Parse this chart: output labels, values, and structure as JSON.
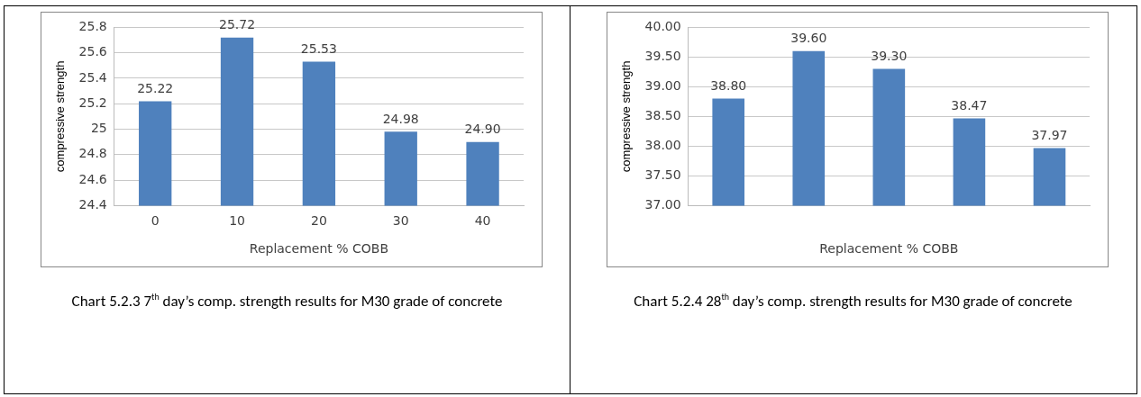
{
  "chart_data": [
    {
      "type": "bar",
      "categories": [
        "0",
        "10",
        "20",
        "30",
        "40"
      ],
      "values": [
        25.22,
        25.72,
        25.53,
        24.98,
        24.9
      ],
      "value_labels": [
        "25.22",
        "25.72",
        "25.53",
        "24.98",
        "24.90"
      ],
      "color": "#4f81bd",
      "xlabel": "Replacement % COBB",
      "ylabel": "compressive strength",
      "ylim": [
        24.4,
        25.8
      ],
      "yticks": [
        24.4,
        24.6,
        24.8,
        25,
        25.2,
        25.4,
        25.6,
        25.8
      ],
      "grid": "y",
      "annotations": [
        "Chart 5.2.3 7$^{th}$ day’s comp. strength results for M30 grade of concrete"
      ]
    },
    {
      "type": "bar",
      "categories": [
        null,
        null,
        null,
        null,
        null
      ],
      "values": [
        38.8,
        39.6,
        39.3,
        38.47,
        37.97
      ],
      "value_labels": [
        "38.80",
        "39.60",
        "39.30",
        "38.47",
        "37.97"
      ],
      "color": "#4f81bd",
      "xlabel": "Replacement % COBB",
      "ylabel": "compressive strength",
      "ylim": [
        37,
        40
      ],
      "yticks": [
        {
          "value": 37,
          "label": "37.00"
        },
        {
          "value": 37.5,
          "label": "37.50"
        },
        {
          "value": 38,
          "label": "38.00"
        },
        {
          "value": 38.5,
          "label": "38.50"
        },
        {
          "value": 39,
          "label": "39.00"
        },
        {
          "value": 39.5,
          "label": "39.50"
        },
        {
          "value": 40,
          "label": "40.00"
        }
      ],
      "grid": "y",
      "annotations": [
        "Chart 5.2.4 28$^{th}$ day’s comp. strength results for M30 grade of concrete"
      ]
    }
  ]
}
